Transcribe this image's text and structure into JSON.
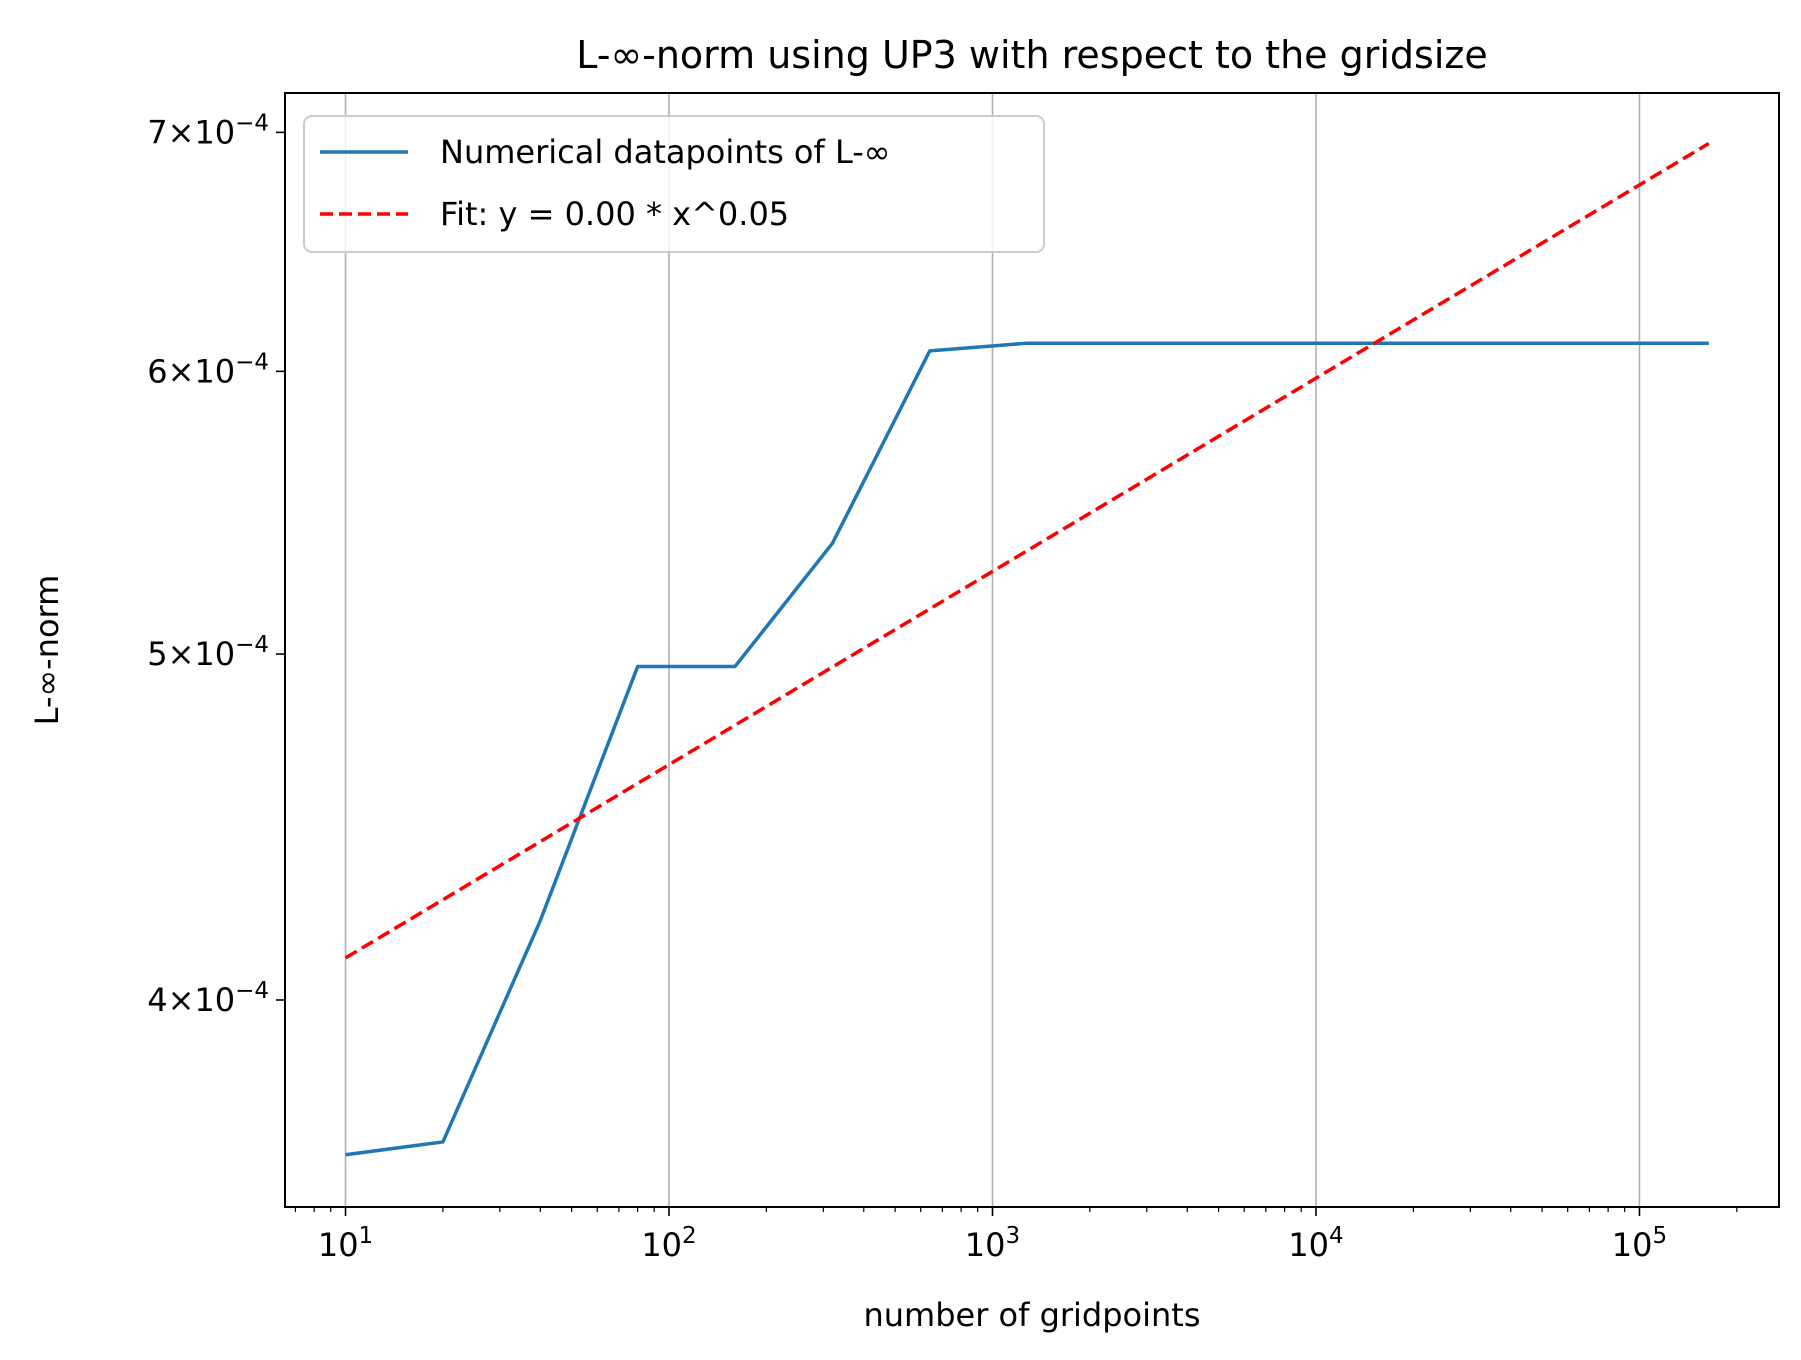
{
  "chart_data": {
    "type": "line",
    "title": "L-∞-norm using UP3 with respect to the gridsize",
    "xlabel": "number of gridpoints",
    "ylabel": "L-∞-norm",
    "xscale": "log",
    "yscale": "log",
    "xlim": [
      6.5,
      270000
    ],
    "ylim": [
      0.00035,
      0.000718
    ],
    "grid": "x-major",
    "legend_position": "top-left",
    "x_major_ticks": [
      {
        "value": 10,
        "base": "10",
        "exp": "1"
      },
      {
        "value": 100,
        "base": "10",
        "exp": "2"
      },
      {
        "value": 1000,
        "base": "10",
        "exp": "3"
      },
      {
        "value": 10000,
        "base": "10",
        "exp": "4"
      },
      {
        "value": 100000,
        "base": "10",
        "exp": "5"
      }
    ],
    "y_ticks": [
      {
        "value": 0.0004,
        "mant": "4",
        "times": "×",
        "base": "10",
        "exp": "−4"
      },
      {
        "value": 0.0005,
        "mant": "5",
        "times": "×",
        "base": "10",
        "exp": "−4"
      },
      {
        "value": 0.0006,
        "mant": "6",
        "times": "×",
        "base": "10",
        "exp": "−4"
      },
      {
        "value": 0.0007,
        "mant": "7",
        "times": "×",
        "base": "10",
        "exp": "−4"
      }
    ],
    "series": [
      {
        "name": "Numerical datapoints of L-∞",
        "color": "#1f77b4",
        "style": "solid",
        "x": [
          10,
          20,
          40,
          80,
          160,
          320,
          640,
          1280,
          2560,
          5120,
          10240,
          20480,
          40960,
          81920,
          163840
        ],
        "y": [
          0.000362,
          0.000365,
          0.000421,
          0.000496,
          0.000496,
          0.000537,
          0.000608,
          0.000611,
          0.000611,
          0.000611,
          0.000611,
          0.000611,
          0.000611,
          0.000611,
          0.000611
        ]
      },
      {
        "name": "Fit: y = 0.00 * x^0.05",
        "color": "#ff0000",
        "style": "dashed",
        "x": [
          10,
          163840
        ],
        "y": [
          0.000411,
          0.000695
        ]
      }
    ]
  }
}
